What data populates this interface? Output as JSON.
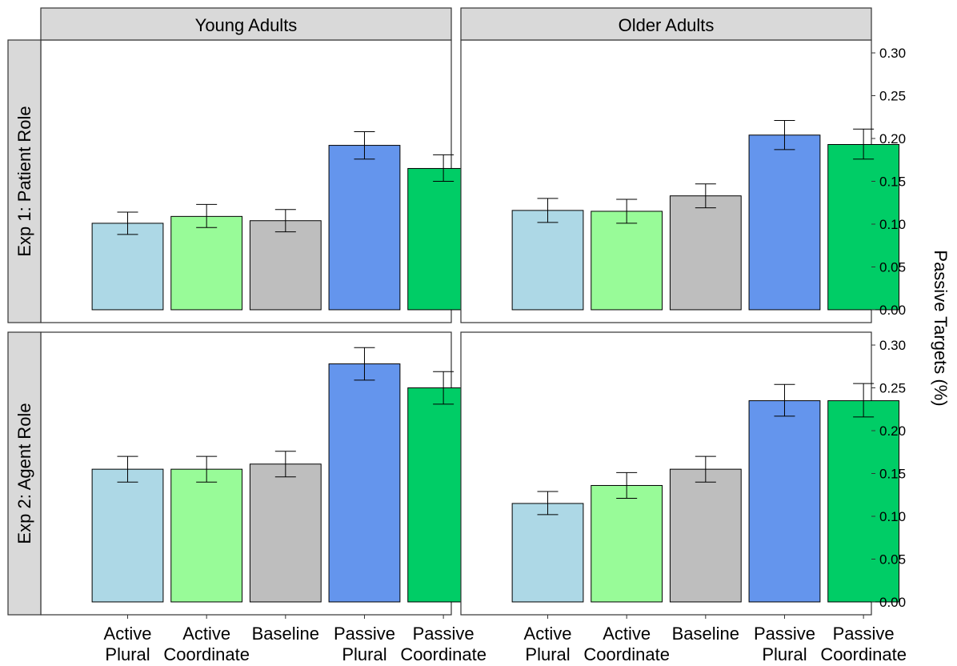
{
  "chart_data": {
    "type": "bar",
    "title": "",
    "ylabel": "Passive Targets (%)",
    "ylim": [
      -0.015,
      0.315
    ],
    "y_ticks": [
      "0.00",
      "0.05",
      "0.10",
      "0.15",
      "0.20",
      "0.25",
      "0.30"
    ],
    "columns": [
      "Young Adults",
      "Older Adults"
    ],
    "rows": [
      "Exp 1: Patient Role",
      "Exp 2: Agent Role"
    ],
    "categories": [
      "Active\nPlural",
      "Active\nCoordinate",
      "Baseline",
      "Passive\nPlural",
      "Passive\nCoordinate"
    ],
    "colors": [
      "#ADD8E6",
      "#98FB98",
      "#BEBEBE",
      "#6495ED",
      "#00CD66"
    ],
    "strip_fill": "#D9D9D9",
    "panels": [
      {
        "row": 0,
        "col": 0,
        "values": [
          0.101,
          0.109,
          0.104,
          0.192,
          0.165
        ],
        "lower": [
          0.088,
          0.096,
          0.091,
          0.176,
          0.15
        ],
        "upper": [
          0.114,
          0.123,
          0.117,
          0.208,
          0.181
        ]
      },
      {
        "row": 0,
        "col": 1,
        "values": [
          0.116,
          0.115,
          0.133,
          0.204,
          0.193
        ],
        "lower": [
          0.102,
          0.101,
          0.119,
          0.187,
          0.176
        ],
        "upper": [
          0.13,
          0.129,
          0.147,
          0.221,
          0.211
        ]
      },
      {
        "row": 1,
        "col": 0,
        "values": [
          0.155,
          0.155,
          0.161,
          0.278,
          0.25
        ],
        "lower": [
          0.14,
          0.14,
          0.146,
          0.259,
          0.231
        ],
        "upper": [
          0.17,
          0.17,
          0.176,
          0.297,
          0.269
        ]
      },
      {
        "row": 1,
        "col": 1,
        "values": [
          0.115,
          0.136,
          0.155,
          0.235,
          0.235
        ],
        "lower": [
          0.102,
          0.121,
          0.14,
          0.217,
          0.216
        ],
        "upper": [
          0.129,
          0.151,
          0.17,
          0.254,
          0.255
        ]
      }
    ]
  }
}
